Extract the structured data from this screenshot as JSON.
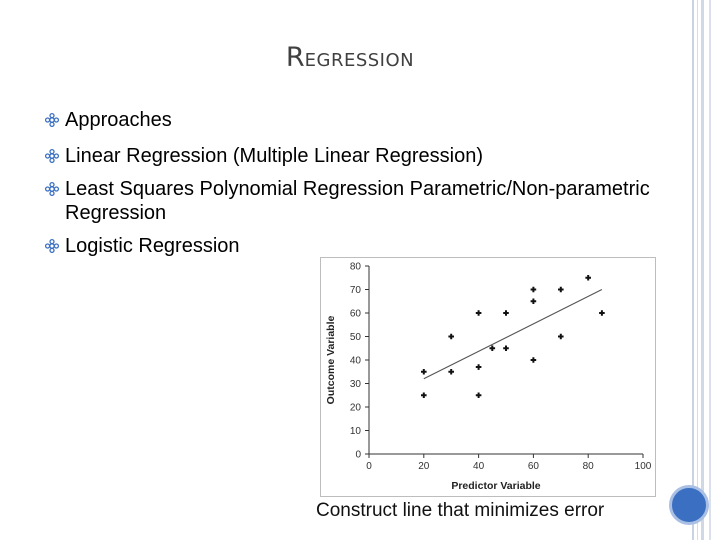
{
  "slide": {
    "title_first_letter": "R",
    "title_rest": "EGRESSION",
    "bullets": [
      "Approaches",
      "Linear Regression (Multiple Linear Regression)",
      "Least Squares Polynomial Regression Parametric/Non-parametric Regression",
      " Logistic Regression"
    ],
    "caption": "Construct line that minimizes error",
    "accent_color": "#3b6fc2",
    "bullet_icon": "gear-flower-icon"
  },
  "chart_data": {
    "type": "scatter",
    "xlabel": "Predictor Variable",
    "ylabel": "Outcome Variable",
    "xlim": [
      0,
      100
    ],
    "ylim": [
      0,
      80
    ],
    "xticks": [
      0,
      20,
      40,
      60,
      80,
      100
    ],
    "yticks": [
      0,
      10,
      20,
      30,
      40,
      50,
      60,
      70,
      80
    ],
    "grid": false,
    "points": [
      {
        "x": 20,
        "y": 25
      },
      {
        "x": 20,
        "y": 35
      },
      {
        "x": 30,
        "y": 50
      },
      {
        "x": 30,
        "y": 35
      },
      {
        "x": 40,
        "y": 60
      },
      {
        "x": 40,
        "y": 37
      },
      {
        "x": 40,
        "y": 25
      },
      {
        "x": 45,
        "y": 45
      },
      {
        "x": 50,
        "y": 60
      },
      {
        "x": 50,
        "y": 45
      },
      {
        "x": 60,
        "y": 70
      },
      {
        "x": 60,
        "y": 65
      },
      {
        "x": 60,
        "y": 40
      },
      {
        "x": 70,
        "y": 70
      },
      {
        "x": 70,
        "y": 50
      },
      {
        "x": 80,
        "y": 75
      },
      {
        "x": 85,
        "y": 60
      }
    ],
    "fit_line": {
      "x": [
        20,
        85
      ],
      "y": [
        32,
        70
      ]
    }
  }
}
